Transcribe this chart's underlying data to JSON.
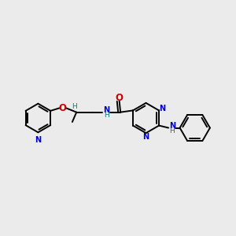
{
  "bg_color": "#ebebeb",
  "bond_color": "#000000",
  "N_color": "#0000cc",
  "O_color": "#cc0000",
  "NH_color": "#008080",
  "lw": 1.4,
  "fs": 7.0,
  "xlim": [
    0,
    10
  ],
  "ylim": [
    0,
    10
  ]
}
